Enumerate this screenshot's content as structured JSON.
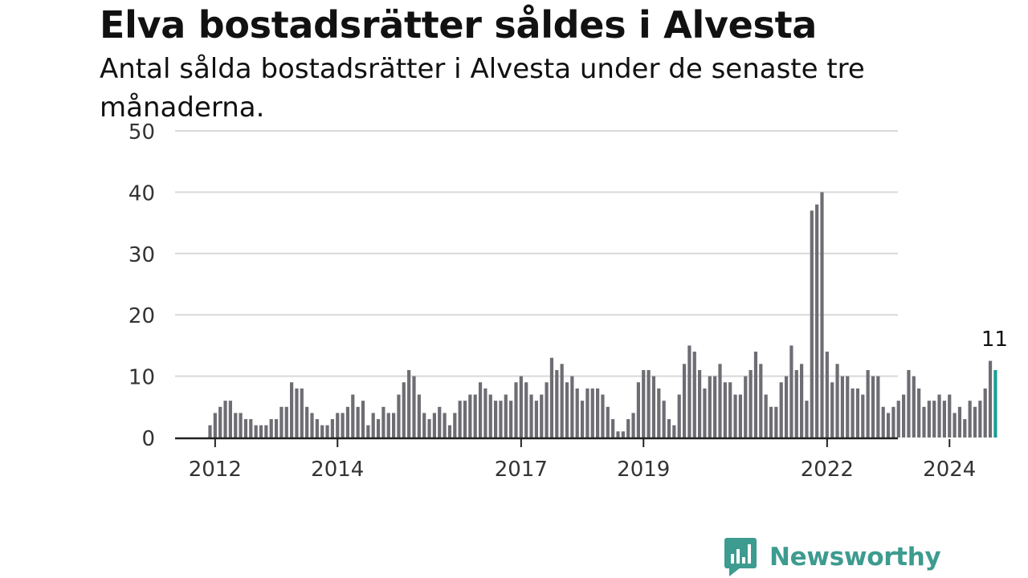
{
  "title": "Elva bostadsrätter såldes i Alvesta",
  "subtitle": "Antal sålda bostadsrätter i Alvesta under de senaste tre månaderna.",
  "brand": {
    "name": "Newsworthy",
    "logo_icon": "bar-chart-speech-bubble-icon"
  },
  "chart_data": {
    "type": "bar",
    "title": "Elva bostadsrätter såldes i Alvesta",
    "subtitle": "Antal sålda bostadsrätter i Alvesta under de senaste tre månaderna.",
    "xlabel": "",
    "ylabel": "",
    "ylim": [
      0,
      50
    ],
    "yticks": [
      0,
      10,
      20,
      30,
      40,
      50
    ],
    "xticks": [
      {
        "label": "2012",
        "index": 1
      },
      {
        "label": "2014",
        "index": 25
      },
      {
        "label": "2017",
        "index": 61
      },
      {
        "label": "2019",
        "index": 85
      },
      {
        "label": "2022",
        "index": 121
      },
      {
        "label": "2024",
        "index": 145
      }
    ],
    "grid": true,
    "colors": {
      "bar": "#6e6d73",
      "highlight": "#1a9e94",
      "grid": "#d9d9d9",
      "axis": "#222222"
    },
    "highlight_label": "11",
    "x_start": "2011-12",
    "x_end": "2024-11",
    "values": [
      2,
      4,
      5,
      6,
      6,
      4,
      4,
      3,
      3,
      2,
      2,
      2,
      3,
      3,
      5,
      5,
      9,
      8,
      8,
      5,
      4,
      3,
      2,
      2,
      3,
      4,
      4,
      5,
      7,
      5,
      6,
      2,
      4,
      3,
      5,
      4,
      4,
      7,
      9,
      11,
      10,
      7,
      4,
      3,
      4,
      5,
      4,
      2,
      4,
      6,
      6,
      7,
      7,
      9,
      8,
      7,
      6,
      6,
      7,
      6,
      9,
      10,
      9,
      7,
      6,
      7,
      9,
      13,
      11,
      12,
      9,
      10,
      8,
      6,
      8,
      8,
      8,
      7,
      5,
      3,
      1,
      1,
      3,
      4,
      9,
      11,
      11,
      10,
      8,
      6,
      3,
      2,
      7,
      12,
      15,
      14,
      11,
      8,
      10,
      10,
      12,
      9,
      9,
      7,
      7,
      10,
      11,
      14,
      12,
      7,
      5,
      5,
      9,
      10,
      15,
      11,
      12,
      6,
      37,
      38,
      40,
      14,
      9,
      12,
      10,
      10,
      8,
      8,
      7,
      11,
      10,
      10,
      5,
      4,
      5,
      6,
      7,
      11,
      10,
      8,
      5,
      6,
      6,
      7,
      6,
      7,
      4,
      5,
      3,
      6,
      5,
      6,
      8,
      12.5,
      11
    ]
  }
}
